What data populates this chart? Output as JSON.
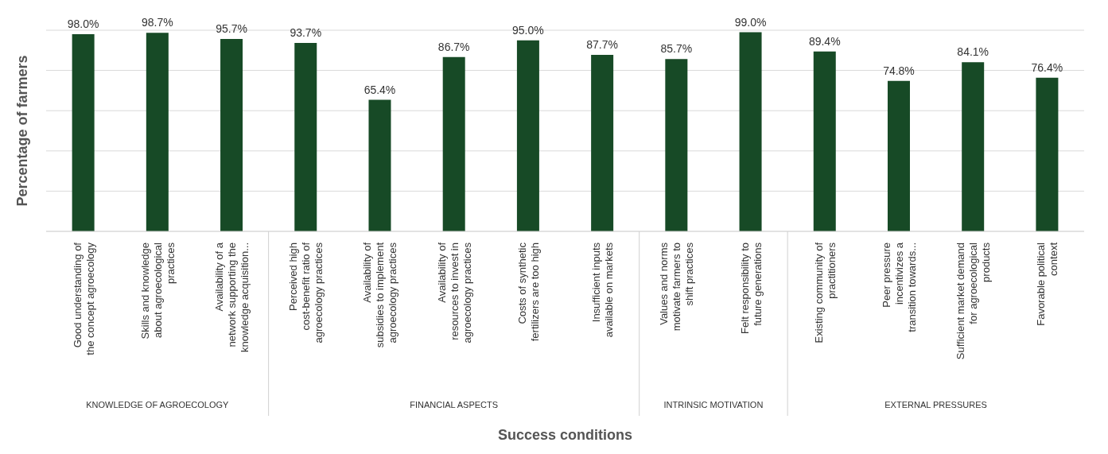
{
  "chart_data": {
    "type": "bar",
    "xlabel": "Success conditions",
    "ylabel": "Percentage of farmers",
    "categories": [
      "Good understanding of the concept agroecology",
      "Skills and knowledge about agroecological practices",
      "Availability of a network supporting the knowledge acquisition...",
      "Perceived high cost-benefit ratio of agroecology practices",
      "Availability of subsidies to implement agroecology practices",
      "Availability of resources to invest in agroecology practices",
      "Costs of synthetic fertilizers are too high",
      "Insufficient inputs available on markets",
      "Values and norms motivate farmers to shift practices",
      "Felt responsibility to future generations",
      "Existing community of practitioners",
      "Peer pressure incentivizes a transition towards...",
      "Sufficient market demand for agroecological products",
      "Favorable political context"
    ],
    "values": [
      98.0,
      98.7,
      95.7,
      93.7,
      65.4,
      86.7,
      95.0,
      87.7,
      85.7,
      99.0,
      89.4,
      74.8,
      84.1,
      76.4
    ],
    "value_labels": [
      "98.0%",
      "98.7%",
      "95.7%",
      "93.7%",
      "65.4%",
      "86.7%",
      "95.0%",
      "87.7%",
      "85.7%",
      "99.0%",
      "89.4%",
      "74.8%",
      "84.1%",
      "76.4%"
    ],
    "color": "#174a26",
    "ylim": [
      0,
      100
    ],
    "yticks": [
      {
        "value": 0,
        "label": null
      },
      {
        "value": 20,
        "label": null
      },
      {
        "value": 40,
        "label": null
      },
      {
        "value": 60,
        "label": null
      },
      {
        "value": 80,
        "label": null
      },
      {
        "value": 100,
        "label": null
      }
    ],
    "tick_labels": "x",
    "grid": "y",
    "legend": false,
    "annotations": [
      "KNOWLEDGE OF AGROECOLOGY",
      "FINANCIAL ASPECTS",
      "INTRINSIC MOTIVATION",
      "EXTERNAL PRESSURES"
    ]
  }
}
